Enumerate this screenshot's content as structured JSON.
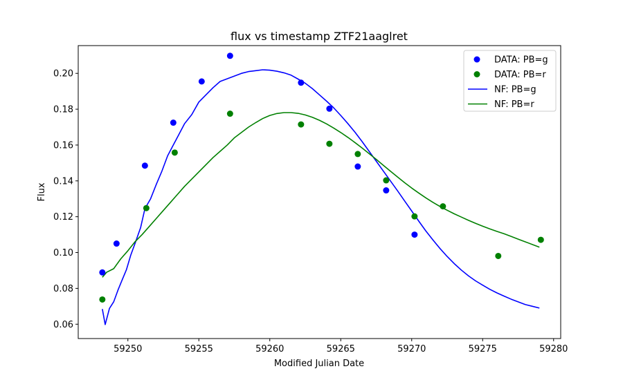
{
  "chart_data": {
    "type": "scatter",
    "title": "flux vs timestamp ZTF21aaglret",
    "xlabel": "Modified Julian Date",
    "ylabel": "Flux",
    "xlim": [
      59246.5,
      59280.5
    ],
    "ylim": [
      0.052,
      0.2155
    ],
    "xticks": [
      59250,
      59255,
      59260,
      59265,
      59270,
      59275,
      59280
    ],
    "yticks": [
      0.06,
      0.08,
      0.1,
      0.12,
      0.14,
      0.16,
      0.18,
      0.2
    ],
    "legend_position": "top-right",
    "grid": false,
    "series": [
      {
        "name": "DATA: PB=g",
        "kind": "scatter",
        "color": "#0000ff",
        "points": [
          [
            59248.2,
            0.0889
          ],
          [
            59249.2,
            0.105
          ],
          [
            59251.2,
            0.1485
          ],
          [
            59253.2,
            0.1725
          ],
          [
            59255.2,
            0.1955
          ],
          [
            59257.2,
            0.2098
          ],
          [
            59262.2,
            0.1948
          ],
          [
            59264.2,
            0.1803
          ],
          [
            59266.2,
            0.148
          ],
          [
            59268.2,
            0.1347
          ],
          [
            59270.2,
            0.11
          ]
        ]
      },
      {
        "name": "DATA: PB=r",
        "kind": "scatter",
        "color": "#008000",
        "points": [
          [
            59248.2,
            0.0738
          ],
          [
            59251.3,
            0.1248
          ],
          [
            59253.3,
            0.1558
          ],
          [
            59257.2,
            0.1775
          ],
          [
            59262.2,
            0.1715
          ],
          [
            59264.2,
            0.1607
          ],
          [
            59266.2,
            0.155
          ],
          [
            59268.2,
            0.1403
          ],
          [
            59270.2,
            0.1202
          ],
          [
            59272.2,
            0.1258
          ],
          [
            59276.1,
            0.0981
          ],
          [
            59279.1,
            0.1071
          ]
        ]
      },
      {
        "name": "NF: PB=g",
        "kind": "line",
        "color": "#0000ff",
        "points": [
          [
            59248.2,
            0.0685
          ],
          [
            59248.4,
            0.0598
          ],
          [
            59248.7,
            0.0688
          ],
          [
            59249.0,
            0.0725
          ],
          [
            59249.3,
            0.079
          ],
          [
            59249.6,
            0.0848
          ],
          [
            59249.9,
            0.0905
          ],
          [
            59250.2,
            0.0985
          ],
          [
            59250.5,
            0.105
          ],
          [
            59250.9,
            0.114
          ],
          [
            59251.2,
            0.1245
          ],
          [
            59251.6,
            0.13
          ],
          [
            59252.0,
            0.138
          ],
          [
            59252.4,
            0.1455
          ],
          [
            59252.8,
            0.154
          ],
          [
            59253.2,
            0.16
          ],
          [
            59253.6,
            0.166
          ],
          [
            59254.0,
            0.172
          ],
          [
            59254.5,
            0.177
          ],
          [
            59255.0,
            0.184
          ],
          [
            59255.5,
            0.188
          ],
          [
            59256.0,
            0.192
          ],
          [
            59256.5,
            0.1955
          ],
          [
            59257.0,
            0.197
          ],
          [
            59257.5,
            0.1985
          ],
          [
            59258.0,
            0.2
          ],
          [
            59258.5,
            0.201
          ],
          [
            59259.0,
            0.2015
          ],
          [
            59259.5,
            0.202
          ],
          [
            59260.0,
            0.2018
          ],
          [
            59260.5,
            0.2012
          ],
          [
            59261.0,
            0.2003
          ],
          [
            59261.5,
            0.199
          ],
          [
            59262.0,
            0.1968
          ],
          [
            59262.5,
            0.1945
          ],
          [
            59263.0,
            0.1915
          ],
          [
            59263.5,
            0.188
          ],
          [
            59264.0,
            0.1845
          ],
          [
            59264.5,
            0.1808
          ],
          [
            59265.0,
            0.1765
          ],
          [
            59265.5,
            0.172
          ],
          [
            59266.0,
            0.1672
          ],
          [
            59266.5,
            0.162
          ],
          [
            59267.0,
            0.1565
          ],
          [
            59267.5,
            0.151
          ],
          [
            59268.0,
            0.1455
          ],
          [
            59268.5,
            0.14
          ],
          [
            59269.0,
            0.1345
          ],
          [
            59269.5,
            0.1288
          ],
          [
            59270.0,
            0.1232
          ],
          [
            59270.5,
            0.1175
          ],
          [
            59271.0,
            0.112
          ],
          [
            59271.5,
            0.107
          ],
          [
            59272.0,
            0.1022
          ],
          [
            59272.5,
            0.0978
          ],
          [
            59273.0,
            0.0938
          ],
          [
            59273.5,
            0.0902
          ],
          [
            59274.0,
            0.087
          ],
          [
            59274.5,
            0.0842
          ],
          [
            59275.0,
            0.0818
          ],
          [
            59275.5,
            0.0795
          ],
          [
            59276.0,
            0.0775
          ],
          [
            59276.5,
            0.0757
          ],
          [
            59277.0,
            0.074
          ],
          [
            59277.5,
            0.0725
          ],
          [
            59278.0,
            0.071
          ],
          [
            59278.5,
            0.07
          ],
          [
            59279.0,
            0.069
          ]
        ]
      },
      {
        "name": "NF: PB=r",
        "kind": "line",
        "color": "#008000",
        "points": [
          [
            59248.2,
            0.0862
          ],
          [
            59248.5,
            0.089
          ],
          [
            59249.0,
            0.091
          ],
          [
            59249.5,
            0.0965
          ],
          [
            59250.0,
            0.101
          ],
          [
            59250.5,
            0.106
          ],
          [
            59251.0,
            0.11
          ],
          [
            59251.5,
            0.1145
          ],
          [
            59252.0,
            0.119
          ],
          [
            59252.5,
            0.1235
          ],
          [
            59253.0,
            0.128
          ],
          [
            59253.5,
            0.1325
          ],
          [
            59254.0,
            0.137
          ],
          [
            59254.5,
            0.141
          ],
          [
            59255.0,
            0.145
          ],
          [
            59255.5,
            0.149
          ],
          [
            59256.0,
            0.153
          ],
          [
            59256.5,
            0.1565
          ],
          [
            59257.0,
            0.16
          ],
          [
            59257.5,
            0.164
          ],
          [
            59258.0,
            0.167
          ],
          [
            59258.5,
            0.17
          ],
          [
            59259.0,
            0.1725
          ],
          [
            59259.5,
            0.1748
          ],
          [
            59260.0,
            0.1765
          ],
          [
            59260.5,
            0.1776
          ],
          [
            59261.0,
            0.1781
          ],
          [
            59261.5,
            0.1781
          ],
          [
            59262.0,
            0.1777
          ],
          [
            59262.5,
            0.1768
          ],
          [
            59263.0,
            0.1755
          ],
          [
            59263.5,
            0.1738
          ],
          [
            59264.0,
            0.1718
          ],
          [
            59264.5,
            0.1695
          ],
          [
            59265.0,
            0.167
          ],
          [
            59265.5,
            0.1643
          ],
          [
            59266.0,
            0.1614
          ],
          [
            59266.5,
            0.1584
          ],
          [
            59267.0,
            0.1552
          ],
          [
            59267.5,
            0.152
          ],
          [
            59268.0,
            0.1487
          ],
          [
            59268.5,
            0.1454
          ],
          [
            59269.0,
            0.1422
          ],
          [
            59269.5,
            0.139
          ],
          [
            59270.0,
            0.136
          ],
          [
            59270.5,
            0.1332
          ],
          [
            59271.0,
            0.1305
          ],
          [
            59271.5,
            0.128
          ],
          [
            59272.0,
            0.1257
          ],
          [
            59272.5,
            0.1236
          ],
          [
            59273.0,
            0.1216
          ],
          [
            59273.5,
            0.1198
          ],
          [
            59274.0,
            0.118
          ],
          [
            59274.5,
            0.1163
          ],
          [
            59275.0,
            0.1147
          ],
          [
            59275.5,
            0.1132
          ],
          [
            59276.0,
            0.1118
          ],
          [
            59276.5,
            0.1105
          ],
          [
            59277.0,
            0.109
          ],
          [
            59277.5,
            0.1075
          ],
          [
            59278.0,
            0.106
          ],
          [
            59278.5,
            0.1045
          ],
          [
            59279.0,
            0.103
          ]
        ]
      }
    ]
  }
}
